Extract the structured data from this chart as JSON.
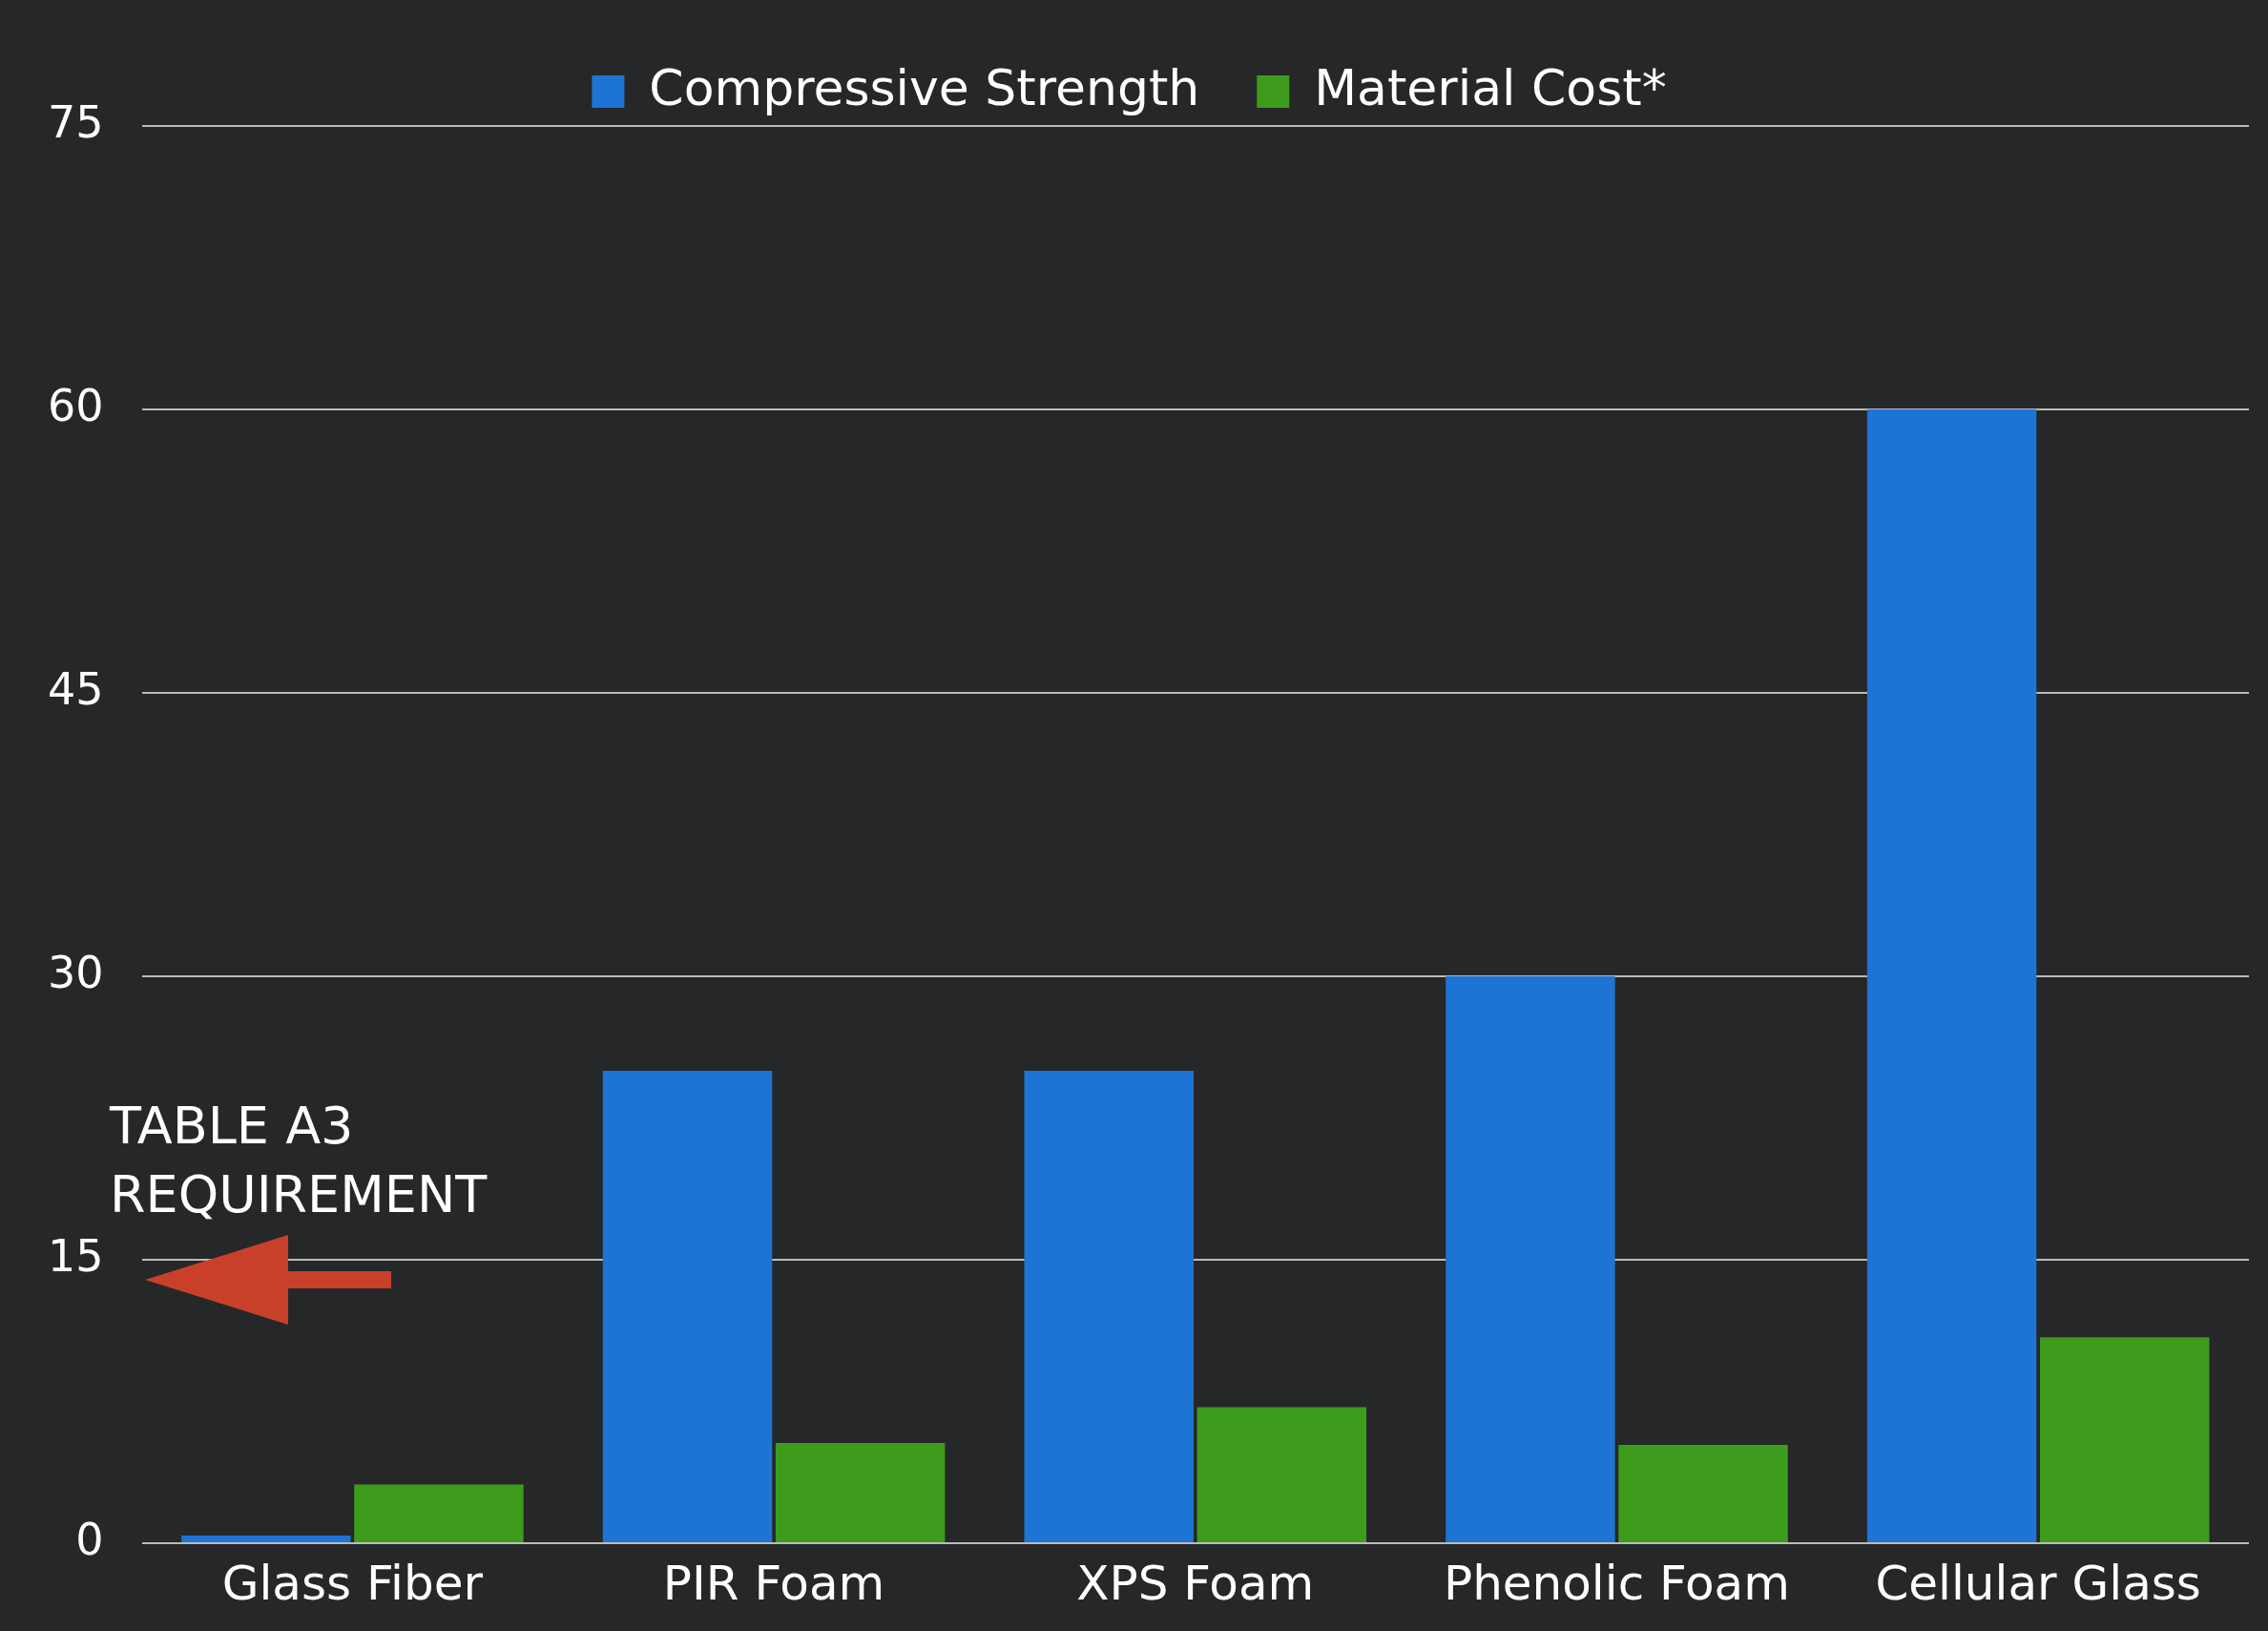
{
  "chart_data": {
    "type": "bar",
    "categories": [
      "Glass Fiber",
      "PIR Foam",
      "XPS Foam",
      "Phenolic Foam",
      "Cellular Glass"
    ],
    "series": [
      {
        "name": "Compressive Strength",
        "color": "#1e74d4",
        "values": [
          0.4,
          25,
          25,
          30,
          60
        ]
      },
      {
        "name": "Material Cost*",
        "color": "#3e9c1c",
        "values": [
          3.1,
          5.3,
          7.2,
          5.2,
          10.9
        ]
      }
    ],
    "ylim": [
      0,
      75
    ],
    "yticks": [
      0,
      15,
      30,
      45,
      60,
      75
    ],
    "grid": "y",
    "legend": "top",
    "annotations": [
      "TABLE A3 REQUIREMENT"
    ]
  }
}
